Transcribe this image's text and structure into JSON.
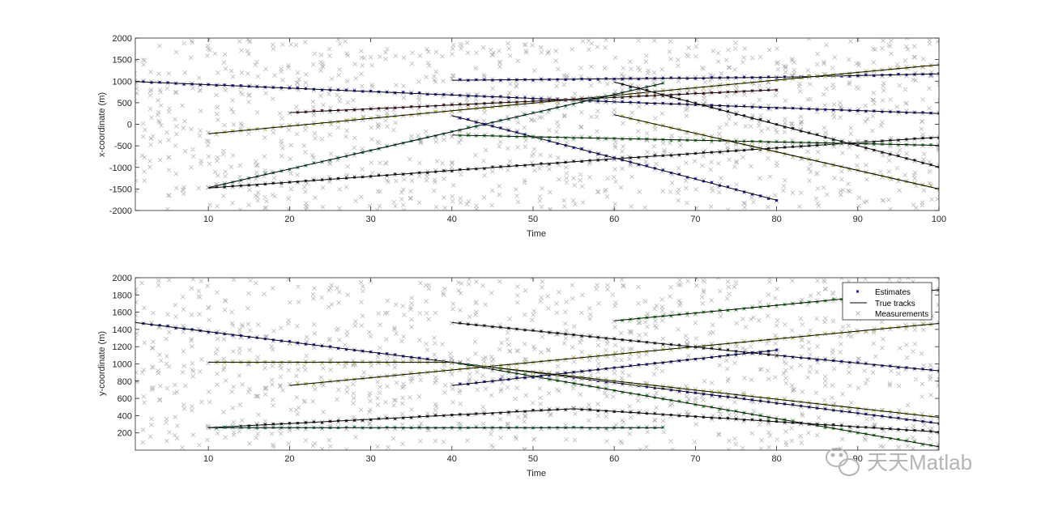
{
  "chart_data": [
    {
      "type": "scatter",
      "xlabel": "Time",
      "ylabel": "x-coordinate (m)",
      "xlim": [
        1,
        100
      ],
      "ylim": [
        -2000,
        2000
      ],
      "xticks": [
        "10",
        "20",
        "30",
        "40",
        "50",
        "60",
        "70",
        "80",
        "90",
        "100"
      ],
      "yticks": [
        "-2000",
        "-1500",
        "-1000",
        "-500",
        "0",
        "500",
        "1000",
        "1500",
        "2000"
      ],
      "grid": false,
      "true_tracks": [
        {
          "x": [
            1,
            60
          ],
          "y": [
            990,
            520
          ],
          "est_color": "#1f1fd0"
        },
        {
          "x": [
            60,
            100
          ],
          "y": [
            520,
            250
          ],
          "est_color": "#1f1fd0"
        },
        {
          "x": [
            40,
            80
          ],
          "y": [
            1020,
            1090
          ],
          "est_color": "#1f1fd0"
        },
        {
          "x": [
            80,
            100
          ],
          "y": [
            1090,
            1170
          ],
          "est_color": "#1f1fd0"
        },
        {
          "x": [
            10,
            55
          ],
          "y": [
            -220,
            580
          ],
          "est_color": "#c8c820"
        },
        {
          "x": [
            55,
            100
          ],
          "y": [
            580,
            1380
          ],
          "est_color": "#c8c820"
        },
        {
          "x": [
            20,
            80
          ],
          "y": [
            270,
            800
          ],
          "est_color": "#7a2a2a"
        },
        {
          "x": [
            10,
            66
          ],
          "y": [
            -1470,
            950
          ],
          "est_color": "#20a060"
        },
        {
          "x": [
            10,
            60
          ],
          "y": [
            -1480,
            -800
          ],
          "est_color": "#303030"
        },
        {
          "x": [
            60,
            100
          ],
          "y": [
            -800,
            -300
          ],
          "est_color": "#303030"
        },
        {
          "x": [
            40,
            80
          ],
          "y": [
            200,
            -1760
          ],
          "est_color": "#1f1fd0"
        },
        {
          "x": [
            40,
            100
          ],
          "y": [
            -250,
            -490
          ],
          "est_color": "#20b020"
        },
        {
          "x": [
            60,
            100
          ],
          "y": [
            980,
            -990
          ],
          "est_color": "#303030"
        },
        {
          "x": [
            60,
            100
          ],
          "y": [
            220,
            -1500
          ],
          "est_color": "#c8c820"
        }
      ]
    },
    {
      "type": "scatter",
      "xlabel": "Time",
      "ylabel": "y-coordinate (m)",
      "xlim": [
        1,
        100
      ],
      "ylim": [
        0,
        2000
      ],
      "xticks": [
        "10",
        "20",
        "30",
        "40",
        "50",
        "60",
        "70",
        "80",
        "90"
      ],
      "yticks": [
        "200",
        "400",
        "600",
        "800",
        "1000",
        "1200",
        "1400",
        "1600",
        "1800",
        "2000"
      ],
      "grid": false,
      "legend": {
        "position": "top-right",
        "entries": [
          "Estimates",
          "True tracks",
          "Measurements"
        ]
      },
      "true_tracks": [
        {
          "x": [
            1,
            100
          ],
          "y": [
            1480,
            310
          ],
          "est_color": "#1f1fd0"
        },
        {
          "x": [
            10,
            40
          ],
          "y": [
            1020,
            1020
          ],
          "est_color": "#c8c820"
        },
        {
          "x": [
            40,
            100
          ],
          "y": [
            1020,
            40
          ],
          "est_color": "#20b020"
        },
        {
          "x": [
            20,
            100
          ],
          "y": [
            750,
            1470
          ],
          "est_color": "#c8c820"
        },
        {
          "x": [
            10,
            55
          ],
          "y": [
            260,
            480
          ],
          "est_color": "#303030"
        },
        {
          "x": [
            55,
            100
          ],
          "y": [
            480,
            210
          ],
          "est_color": "#303030"
        },
        {
          "x": [
            10,
            66
          ],
          "y": [
            260,
            260
          ],
          "est_color": "#20a060"
        },
        {
          "x": [
            40,
            80
          ],
          "y": [
            1480,
            1100
          ],
          "est_color": "#303030"
        },
        {
          "x": [
            80,
            100
          ],
          "y": [
            1100,
            920
          ],
          "est_color": "#1f1fd0"
        },
        {
          "x": [
            40,
            80
          ],
          "y": [
            750,
            1160
          ],
          "est_color": "#1f1fd0"
        },
        {
          "x": [
            60,
            100
          ],
          "y": [
            1500,
            1860
          ],
          "est_color": "#20b020"
        },
        {
          "x": [
            45,
            100
          ],
          "y": [
            960,
            380
          ],
          "est_color": "#c8c820"
        }
      ]
    }
  ],
  "watermark": {
    "text": "天天Matlab",
    "icon": "wechat-icon"
  }
}
